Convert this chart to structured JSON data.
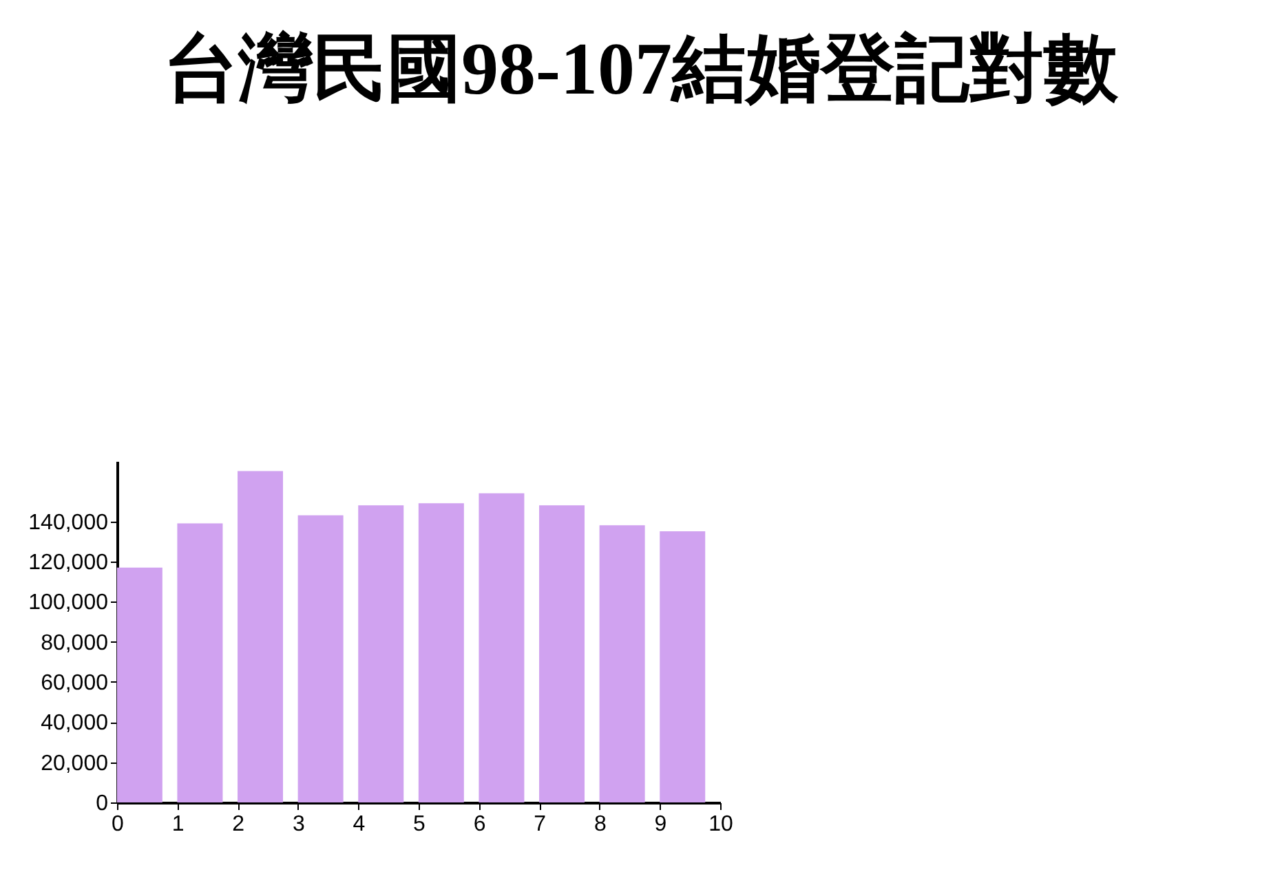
{
  "chart_data": {
    "type": "bar",
    "title": "台灣民國98-107結婚登記對數",
    "x": [
      0.375,
      1.375,
      2.375,
      3.375,
      4.375,
      5.375,
      6.375,
      7.375,
      8.375,
      9.375
    ],
    "values": [
      117000,
      139000,
      165000,
      143000,
      148000,
      149000,
      154000,
      148000,
      138000,
      135000
    ],
    "color": "#d0a2f0",
    "xlim": [
      0,
      10
    ],
    "xticks": [
      0,
      1,
      2,
      3,
      4,
      5,
      6,
      7,
      8,
      9,
      10
    ],
    "ylim": [
      0,
      170000
    ],
    "yticks": [
      0,
      {
        "value": 20000,
        "label": "20,000"
      },
      {
        "value": 40000,
        "label": "40,000"
      },
      {
        "value": 60000,
        "label": "60,000"
      },
      {
        "value": 80000,
        "label": "80,000"
      },
      {
        "value": 100000,
        "label": "100,000"
      },
      {
        "value": 120000,
        "label": "120,000"
      },
      {
        "value": 140000,
        "label": "140,000"
      }
    ],
    "grid": false
  }
}
